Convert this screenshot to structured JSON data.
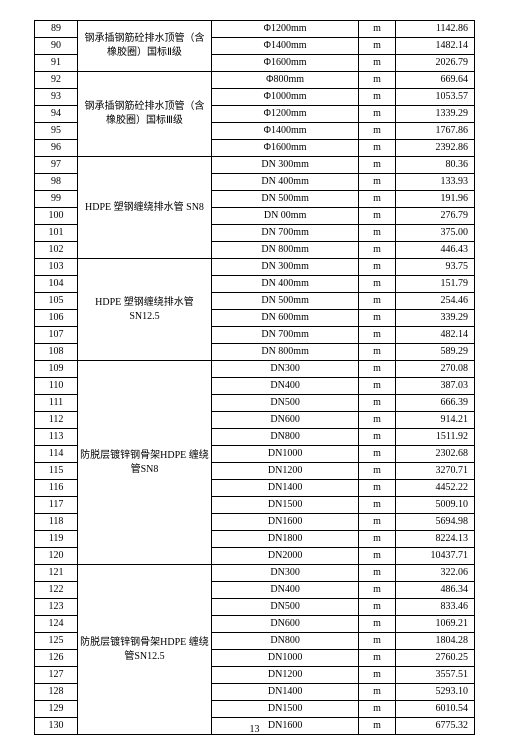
{
  "page_number": "13",
  "border_color": "#000000",
  "background_color": "#ffffff",
  "font_family": "SimSun",
  "groups": [
    {
      "desc": "钢承插钢筋砼排水顶管（含橡胶圈）国标Ⅱ级",
      "rows": [
        {
          "idx": "89",
          "spec": "Φ1200mm",
          "unit": "m",
          "price": "1142.86"
        },
        {
          "idx": "90",
          "spec": "Φ1400mm",
          "unit": "m",
          "price": "1482.14"
        },
        {
          "idx": "91",
          "spec": "Φ1600mm",
          "unit": "m",
          "price": "2026.79"
        }
      ]
    },
    {
      "desc": "钢承插钢筋砼排水顶管（含橡胶圈）国标Ⅲ级",
      "rows": [
        {
          "idx": "92",
          "spec": "Φ800mm",
          "unit": "m",
          "price": "669.64"
        },
        {
          "idx": "93",
          "spec": "Φ1000mm",
          "unit": "m",
          "price": "1053.57"
        },
        {
          "idx": "94",
          "spec": "Φ1200mm",
          "unit": "m",
          "price": "1339.29"
        },
        {
          "idx": "95",
          "spec": "Φ1400mm",
          "unit": "m",
          "price": "1767.86"
        },
        {
          "idx": "96",
          "spec": "Φ1600mm",
          "unit": "m",
          "price": "2392.86"
        }
      ]
    },
    {
      "desc": "HDPE 塑钢缠绕排水管 SN8",
      "rows": [
        {
          "idx": "97",
          "spec": "DN 300mm",
          "unit": "m",
          "price": "80.36"
        },
        {
          "idx": "98",
          "spec": "DN 400mm",
          "unit": "m",
          "price": "133.93"
        },
        {
          "idx": "99",
          "spec": "DN 500mm",
          "unit": "m",
          "price": "191.96"
        },
        {
          "idx": "100",
          "spec": "DN 00mm",
          "unit": "m",
          "price": "276.79"
        },
        {
          "idx": "101",
          "spec": "DN 700mm",
          "unit": "m",
          "price": "375.00"
        },
        {
          "idx": "102",
          "spec": "DN 800mm",
          "unit": "m",
          "price": "446.43"
        }
      ]
    },
    {
      "desc": "HDPE 塑钢缠绕排水管 SN12.5",
      "rows": [
        {
          "idx": "103",
          "spec": "DN 300mm",
          "unit": "m",
          "price": "93.75"
        },
        {
          "idx": "104",
          "spec": "DN 400mm",
          "unit": "m",
          "price": "151.79"
        },
        {
          "idx": "105",
          "spec": "DN 500mm",
          "unit": "m",
          "price": "254.46"
        },
        {
          "idx": "106",
          "spec": "DN 600mm",
          "unit": "m",
          "price": "339.29"
        },
        {
          "idx": "107",
          "spec": "DN 700mm",
          "unit": "m",
          "price": "482.14"
        },
        {
          "idx": "108",
          "spec": "DN 800mm",
          "unit": "m",
          "price": "589.29"
        }
      ]
    },
    {
      "desc": "防脱层镀锌钢骨架HDPE 缠绕管SN8",
      "rows": [
        {
          "idx": "109",
          "spec": "DN300",
          "unit": "m",
          "price": "270.08"
        },
        {
          "idx": "110",
          "spec": "DN400",
          "unit": "m",
          "price": "387.03"
        },
        {
          "idx": "111",
          "spec": "DN500",
          "unit": "m",
          "price": "666.39"
        },
        {
          "idx": "112",
          "spec": "DN600",
          "unit": "m",
          "price": "914.21"
        },
        {
          "idx": "113",
          "spec": "DN800",
          "unit": "m",
          "price": "1511.92"
        },
        {
          "idx": "114",
          "spec": "DN1000",
          "unit": "m",
          "price": "2302.68"
        },
        {
          "idx": "115",
          "spec": "DN1200",
          "unit": "m",
          "price": "3270.71"
        },
        {
          "idx": "116",
          "spec": "DN1400",
          "unit": "m",
          "price": "4452.22"
        },
        {
          "idx": "117",
          "spec": "DN1500",
          "unit": "m",
          "price": "5009.10"
        },
        {
          "idx": "118",
          "spec": "DN1600",
          "unit": "m",
          "price": "5694.98"
        },
        {
          "idx": "119",
          "spec": "DN1800",
          "unit": "m",
          "price": "8224.13"
        },
        {
          "idx": "120",
          "spec": "DN2000",
          "unit": "m",
          "price": "10437.71"
        }
      ]
    },
    {
      "desc": "防脱层镀锌钢骨架HDPE 缠绕管SN12.5",
      "rows": [
        {
          "idx": "121",
          "spec": "DN300",
          "unit": "m",
          "price": "322.06"
        },
        {
          "idx": "122",
          "spec": "DN400",
          "unit": "m",
          "price": "486.34"
        },
        {
          "idx": "123",
          "spec": "DN500",
          "unit": "m",
          "price": "833.46"
        },
        {
          "idx": "124",
          "spec": "DN600",
          "unit": "m",
          "price": "1069.21"
        },
        {
          "idx": "125",
          "spec": "DN800",
          "unit": "m",
          "price": "1804.28"
        },
        {
          "idx": "126",
          "spec": "DN1000",
          "unit": "m",
          "price": "2760.25"
        },
        {
          "idx": "127",
          "spec": "DN1200",
          "unit": "m",
          "price": "3557.51"
        },
        {
          "idx": "128",
          "spec": "DN1400",
          "unit": "m",
          "price": "5293.10"
        },
        {
          "idx": "129",
          "spec": "DN1500",
          "unit": "m",
          "price": "6010.54"
        },
        {
          "idx": "130",
          "spec": "DN1600",
          "unit": "m",
          "price": "6775.32"
        }
      ]
    }
  ]
}
